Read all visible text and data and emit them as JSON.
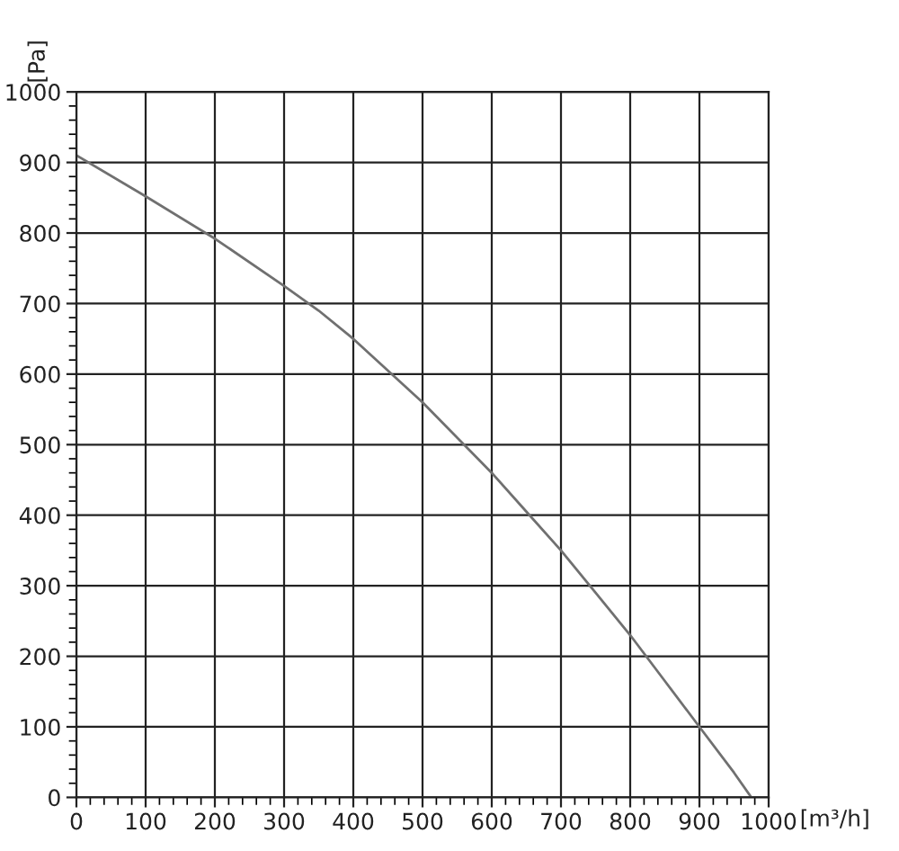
{
  "chart_data": {
    "type": "line",
    "xlabel": "[m³/h]",
    "ylabel": "[Pa]",
    "x": [
      0,
      100,
      200,
      300,
      350,
      400,
      450,
      500,
      550,
      600,
      650,
      700,
      750,
      800,
      850,
      900,
      950,
      975
    ],
    "series": [
      {
        "color": "#707070",
        "values": [
          910,
          852,
          792,
          725,
          690,
          650,
          605,
          560,
          510,
          460,
          405,
          350,
          290,
          230,
          165,
          100,
          35,
          0
        ]
      }
    ],
    "xlim": [
      0,
      1000
    ],
    "ylim": [
      0,
      1000
    ],
    "xticks": [
      0,
      100,
      200,
      300,
      400,
      500,
      600,
      700,
      800,
      900,
      1000
    ],
    "yticks": [
      0,
      100,
      200,
      300,
      400,
      500,
      600,
      700,
      800,
      900,
      1000
    ],
    "grid": true,
    "marker": "none",
    "line_style": "solid",
    "legend": false
  }
}
